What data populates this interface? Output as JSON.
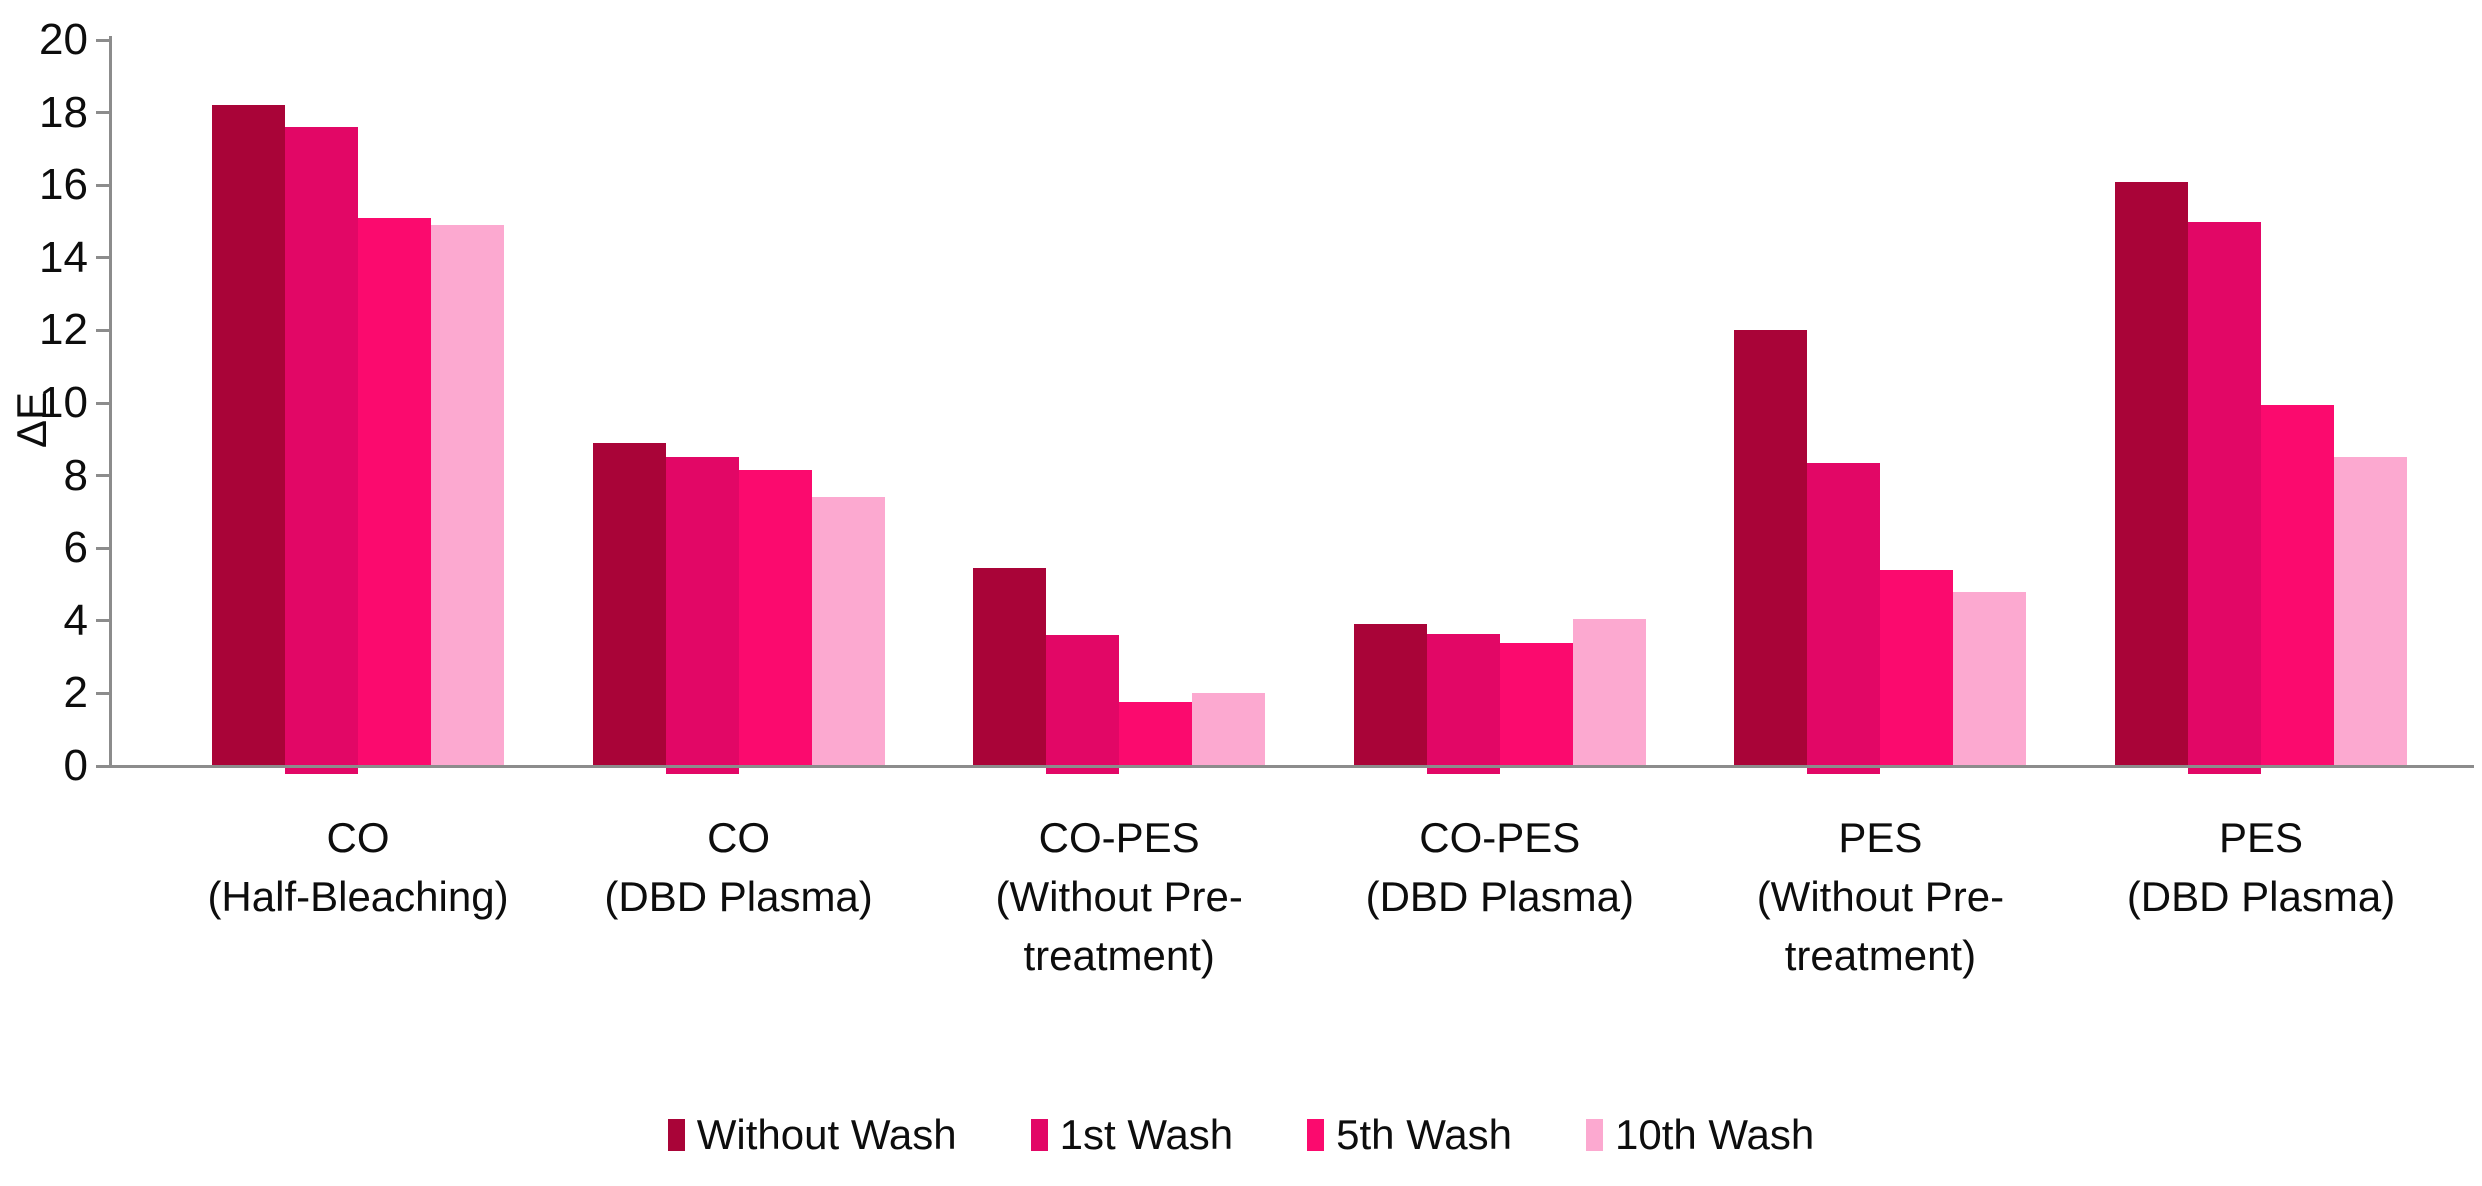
{
  "chart_data": {
    "type": "bar",
    "title": "",
    "xlabel": "",
    "ylabel": "ΔE",
    "ylim": [
      0,
      20
    ],
    "yticks": [
      0,
      2,
      4,
      6,
      8,
      10,
      12,
      14,
      16,
      18,
      20
    ],
    "grid": false,
    "legend_position": "bottom",
    "axis_color": "#8C8C8C",
    "categories": [
      {
        "label": "CO (Half-Bleaching)",
        "lines": [
          "CO",
          "(Half-Bleaching)"
        ]
      },
      {
        "label": "CO (DBD Plasma)",
        "lines": [
          "CO",
          "(DBD Plasma)"
        ]
      },
      {
        "label": "CO-PES (Without Pre-treatment)",
        "lines": [
          "CO-PES",
          "(Without Pre-",
          "treatment)"
        ]
      },
      {
        "label": "CO-PES (DBD Plasma)",
        "lines": [
          "CO-PES",
          "(DBD Plasma)"
        ]
      },
      {
        "label": "PES (Without Pre-treatment)",
        "lines": [
          "PES",
          "(Without Pre-",
          "treatment)"
        ]
      },
      {
        "label": "PES (DBD Plasma)",
        "lines": [
          "PES",
          "(DBD Plasma)"
        ]
      }
    ],
    "series": [
      {
        "name": "Without Wash",
        "color": "#A90438",
        "values": [
          18.2,
          8.9,
          5.45,
          3.9,
          12.0,
          16.1
        ]
      },
      {
        "name": "1st Wash",
        "color": "#E20766",
        "values": [
          17.6,
          8.5,
          3.6,
          3.65,
          8.35,
          15.0
        ]
      },
      {
        "name": "5th Wash",
        "color": "#FB0A6E",
        "values": [
          15.1,
          8.15,
          1.75,
          3.4,
          5.4,
          9.95
        ]
      },
      {
        "name": "10th Wash",
        "color": "#FCA9D0",
        "values": [
          14.9,
          7.4,
          2.0,
          4.05,
          4.8,
          8.5
        ]
      }
    ]
  }
}
